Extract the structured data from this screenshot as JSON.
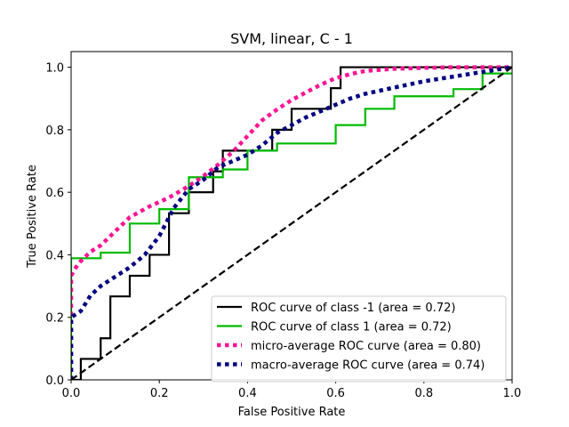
{
  "chart_data": {
    "type": "line",
    "title": "SVM, linear, C - 1",
    "xlabel": "False Positive Rate",
    "ylabel": "True Positive Rate",
    "xlim": [
      0.0,
      1.0
    ],
    "ylim": [
      0.0,
      1.05
    ],
    "xticks": [
      "0.0",
      "0.2",
      "0.4",
      "0.6",
      "0.8",
      "1.0"
    ],
    "yticks": [
      "0.0",
      "0.2",
      "0.4",
      "0.6",
      "0.8",
      "1.0"
    ],
    "grid": false,
    "legend_position": "lower-right",
    "series": [
      {
        "name": "ROC curve of class -1 (area = 0.72)",
        "color": "#000000",
        "style": "solid-step",
        "points": [
          [
            0,
            0
          ],
          [
            0.022,
            0
          ],
          [
            0.022,
            0.067
          ],
          [
            0.067,
            0.067
          ],
          [
            0.067,
            0.133
          ],
          [
            0.089,
            0.133
          ],
          [
            0.089,
            0.267
          ],
          [
            0.133,
            0.267
          ],
          [
            0.133,
            0.333
          ],
          [
            0.178,
            0.333
          ],
          [
            0.178,
            0.4
          ],
          [
            0.222,
            0.4
          ],
          [
            0.222,
            0.533
          ],
          [
            0.267,
            0.533
          ],
          [
            0.267,
            0.6
          ],
          [
            0.322,
            0.6
          ],
          [
            0.322,
            0.667
          ],
          [
            0.344,
            0.667
          ],
          [
            0.344,
            0.733
          ],
          [
            0.456,
            0.733
          ],
          [
            0.456,
            0.8
          ],
          [
            0.5,
            0.8
          ],
          [
            0.5,
            0.867
          ],
          [
            0.589,
            0.867
          ],
          [
            0.589,
            0.933
          ],
          [
            0.611,
            0.933
          ],
          [
            0.611,
            1.0
          ],
          [
            1.0,
            1.0
          ]
        ]
      },
      {
        "name": "ROC curve of class 1 (area = 0.72)",
        "color": "#00bb00",
        "style": "solid-step",
        "points": [
          [
            0,
            0
          ],
          [
            0,
            0.389
          ],
          [
            0.067,
            0.389
          ],
          [
            0.067,
            0.407
          ],
          [
            0.133,
            0.407
          ],
          [
            0.133,
            0.5
          ],
          [
            0.2,
            0.5
          ],
          [
            0.2,
            0.546
          ],
          [
            0.267,
            0.546
          ],
          [
            0.267,
            0.648
          ],
          [
            0.344,
            0.648
          ],
          [
            0.344,
            0.673
          ],
          [
            0.4,
            0.673
          ],
          [
            0.4,
            0.733
          ],
          [
            0.467,
            0.733
          ],
          [
            0.467,
            0.756
          ],
          [
            0.6,
            0.756
          ],
          [
            0.6,
            0.815
          ],
          [
            0.667,
            0.815
          ],
          [
            0.667,
            0.867
          ],
          [
            0.733,
            0.867
          ],
          [
            0.733,
            0.907
          ],
          [
            0.867,
            0.907
          ],
          [
            0.867,
            0.93
          ],
          [
            0.933,
            0.93
          ],
          [
            0.933,
            0.98
          ],
          [
            1.0,
            0.98
          ]
        ]
      },
      {
        "name": "micro-average ROC curve (area = 0.80)",
        "color": "#ff1493",
        "style": "dotted",
        "points": [
          [
            0,
            0
          ],
          [
            0,
            0.333
          ],
          [
            0.011,
            0.36
          ],
          [
            0.022,
            0.38
          ],
          [
            0.044,
            0.41
          ],
          [
            0.067,
            0.43
          ],
          [
            0.089,
            0.46
          ],
          [
            0.111,
            0.49
          ],
          [
            0.133,
            0.52
          ],
          [
            0.178,
            0.555
          ],
          [
            0.222,
            0.583
          ],
          [
            0.267,
            0.62
          ],
          [
            0.3,
            0.652
          ],
          [
            0.333,
            0.688
          ],
          [
            0.367,
            0.73
          ],
          [
            0.4,
            0.78
          ],
          [
            0.433,
            0.83
          ],
          [
            0.467,
            0.865
          ],
          [
            0.5,
            0.895
          ],
          [
            0.533,
            0.92
          ],
          [
            0.567,
            0.945
          ],
          [
            0.6,
            0.965
          ],
          [
            0.633,
            0.978
          ],
          [
            0.667,
            0.988
          ],
          [
            0.733,
            0.995
          ],
          [
            0.8,
            0.998
          ],
          [
            0.867,
            1.0
          ],
          [
            1.0,
            1.0
          ]
        ]
      },
      {
        "name": "macro-average ROC curve (area = 0.74)",
        "color": "#000080",
        "style": "dotted",
        "points": [
          [
            0,
            0
          ],
          [
            0,
            0.2
          ],
          [
            0.022,
            0.22
          ],
          [
            0.044,
            0.27
          ],
          [
            0.067,
            0.3
          ],
          [
            0.089,
            0.32
          ],
          [
            0.111,
            0.34
          ],
          [
            0.133,
            0.36
          ],
          [
            0.167,
            0.4
          ],
          [
            0.2,
            0.46
          ],
          [
            0.233,
            0.55
          ],
          [
            0.267,
            0.61
          ],
          [
            0.3,
            0.64
          ],
          [
            0.333,
            0.68
          ],
          [
            0.367,
            0.7
          ],
          [
            0.4,
            0.72
          ],
          [
            0.433,
            0.75
          ],
          [
            0.467,
            0.79
          ],
          [
            0.5,
            0.815
          ],
          [
            0.533,
            0.84
          ],
          [
            0.567,
            0.86
          ],
          [
            0.6,
            0.88
          ],
          [
            0.633,
            0.9
          ],
          [
            0.667,
            0.915
          ],
          [
            0.733,
            0.935
          ],
          [
            0.8,
            0.955
          ],
          [
            0.867,
            0.97
          ],
          [
            0.933,
            0.985
          ],
          [
            1.0,
            1.0
          ]
        ]
      },
      {
        "name": "",
        "color": "#000000",
        "style": "dashed",
        "points": [
          [
            0,
            0
          ],
          [
            1,
            1
          ]
        ]
      }
    ]
  }
}
